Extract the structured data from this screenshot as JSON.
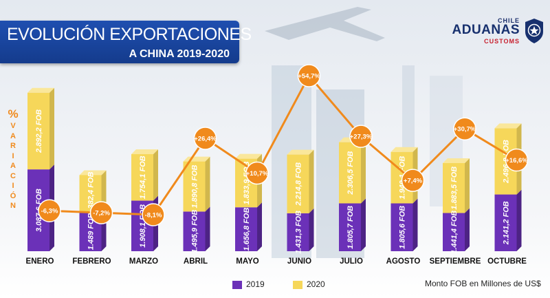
{
  "header": {
    "title": "EVOLUCIÓN EXPORTACIONES",
    "subtitle": "A CHINA 2019-2020"
  },
  "logo": {
    "top": "CHILE",
    "main": "ADUANAS",
    "bottom": "CUSTOMS",
    "icon": "customs-badge-icon"
  },
  "axis_label": {
    "symbol": "%",
    "letters": [
      "V",
      "A",
      "R",
      "I",
      "A",
      "C",
      "I",
      "Ó",
      "N"
    ]
  },
  "legend": {
    "items": [
      {
        "label": "2019",
        "color": "#6b31b8"
      },
      {
        "label": "2020",
        "color": "#f6d75a"
      }
    ]
  },
  "unit_note": "Monto FOB en Millones de US$",
  "colors": {
    "series_2019": "#6b31b8",
    "series_2020": "#f6d75a",
    "variation": "#f08a1c",
    "title_bg": "#1a46a0"
  },
  "chart_data": {
    "type": "bar",
    "categories": [
      "ENERO",
      "FEBRERO",
      "MARZO",
      "ABRIL",
      "MAYO",
      "JUNIO",
      "JULIO",
      "AGOSTO",
      "SEPTIEMBRE",
      "OCTUBRE"
    ],
    "series": [
      {
        "name": "2019",
        "values": [
          3087.6,
          1489.0,
          1908.1,
          1495.9,
          1656.8,
          1431.3,
          1805.7,
          1805.6,
          1441.4,
          2141.2
        ],
        "labels": [
          "3.087,6 FOB",
          "1.489 FOB",
          "1.908,1 FOB",
          "1.495,9 FOB",
          "1.656,8 FOB",
          "1.431,3 FOB",
          "1.805,7 FOB",
          "1.805,6 FOB",
          "1.441,4 FOB",
          "2.141,2 FOB"
        ]
      },
      {
        "name": "2020",
        "values": [
          2892.2,
          1382.4,
          1754.1,
          1890.8,
          1833.9,
          2214.8,
          2306.5,
          1940.1,
          1883.5,
          2496.8
        ],
        "labels": [
          "2.892,2 FOB",
          "1.382,4 FOB",
          "1.754,1 FOB",
          "1.890,8 FOB",
          "1.833,9 FOB",
          "2.214,8 FOB",
          "2.306,5 FOB",
          "1.940,1 FOB",
          "1.883,5 FOB",
          "2.496,8 FOB"
        ]
      }
    ],
    "variation": {
      "values": [
        -6.3,
        -7.2,
        -8.1,
        26.4,
        10.7,
        54.7,
        27.3,
        7.4,
        30.7,
        16.6
      ],
      "labels": [
        "-6,3%",
        "-7,2%",
        "-8,1%",
        "+26,4%",
        "+10,7%",
        "+54,7%",
        "+27,3%",
        "+7,4%",
        "+30,7%",
        "+16,6%"
      ]
    },
    "stacked": true,
    "grid": false,
    "legend_position": "bottom"
  }
}
